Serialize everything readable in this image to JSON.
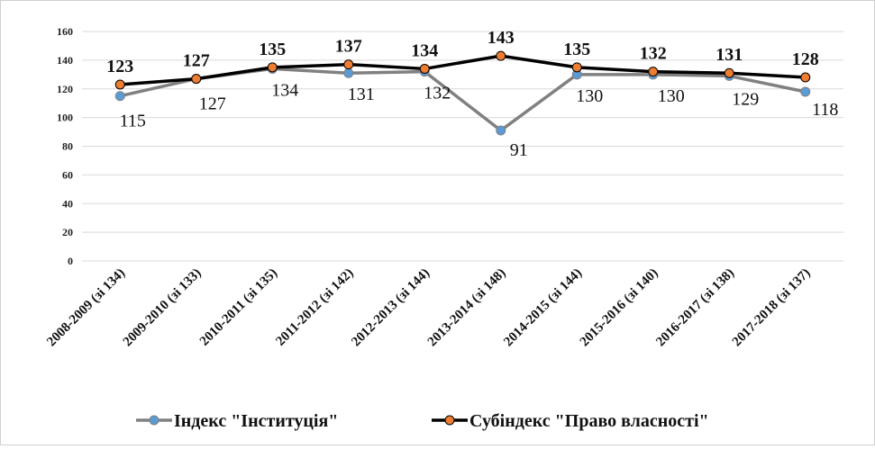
{
  "chart_data": {
    "type": "line",
    "categories": [
      "2008-2009 (зі 134)",
      "2009-2010 (зі 133)",
      "2010-2011 (зі 135)",
      "2011-2012 (зі 142)",
      "2012-2013 (зі 144)",
      "2013-2014 (зі 148)",
      "2014-2015 (зі 144)",
      "2015-2016 (зі 140)",
      "2016-2017 (зі 138)",
      "2017-2018 (зі 137)"
    ],
    "series": [
      {
        "name": "Індекс \"Інституція\"",
        "color": "#808080",
        "marker_color": "#5b9bd5",
        "values": [
          115,
          127,
          134,
          131,
          132,
          91,
          130,
          130,
          129,
          118
        ]
      },
      {
        "name": "Субіндекс \"Право власності\"",
        "color": "#000000",
        "marker_color": "#ed7d31",
        "values": [
          123,
          127,
          135,
          137,
          134,
          143,
          135,
          132,
          131,
          128
        ]
      }
    ],
    "ylim": [
      0,
      160
    ],
    "yticks": [
      0,
      20,
      40,
      60,
      80,
      100,
      120,
      140,
      160
    ],
    "title": "",
    "xlabel": "",
    "ylabel": "",
    "grid": true,
    "legend": "bottom"
  }
}
